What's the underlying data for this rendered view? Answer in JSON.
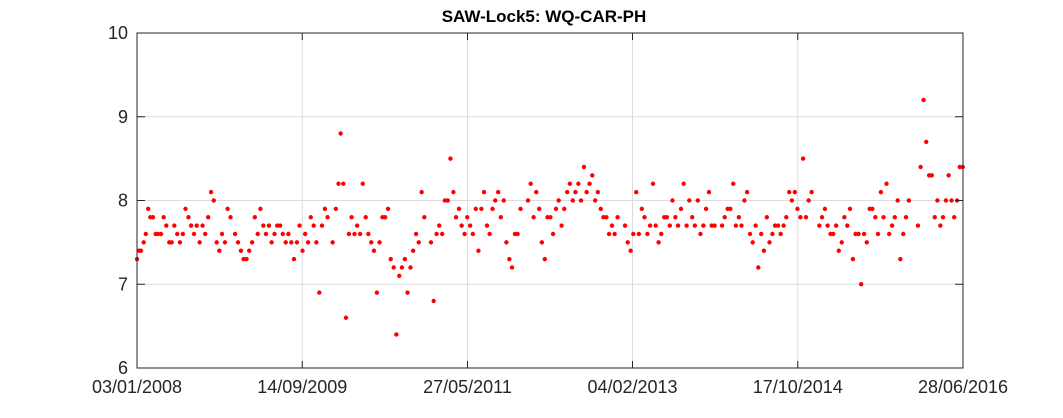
{
  "chart_data": {
    "type": "scatter",
    "title": "SAW-Lock5: WQ-CAR-PH",
    "xlabel": "",
    "ylabel": "",
    "x_type": "date",
    "xlim": [
      "2008-01-03",
      "2016-06-28"
    ],
    "ylim": [
      6,
      10
    ],
    "x_ticks": [
      "2008-01-03",
      "2009-09-14",
      "2011-05-27",
      "2013-02-04",
      "2014-10-17",
      "2016-06-28"
    ],
    "x_tick_labels": [
      "03/01/2008",
      "14/09/2009",
      "27/05/2011",
      "04/02/2013",
      "17/10/2014",
      "28/06/2016"
    ],
    "y_ticks": [
      6,
      7,
      8,
      9,
      10
    ],
    "y_tick_labels": [
      "6",
      "7",
      "8",
      "9",
      "10"
    ],
    "grid": true,
    "marker_color": "#ff0000",
    "series": [
      {
        "points": [
          [
            "2008-01-03",
            7.3
          ],
          [
            "2008-01-10",
            7.4
          ],
          [
            "2008-01-18",
            7.4
          ],
          [
            "2008-01-28",
            7.5
          ],
          [
            "2008-02-05",
            7.6
          ],
          [
            "2008-02-14",
            7.9
          ],
          [
            "2008-02-22",
            7.8
          ],
          [
            "2008-03-03",
            7.8
          ],
          [
            "2008-03-13",
            7.6
          ],
          [
            "2008-03-22",
            7.6
          ],
          [
            "2008-04-02",
            7.6
          ],
          [
            "2008-04-12",
            7.8
          ],
          [
            "2008-04-22",
            7.7
          ],
          [
            "2008-05-03",
            7.5
          ],
          [
            "2008-05-12",
            7.5
          ],
          [
            "2008-05-22",
            7.7
          ],
          [
            "2008-06-02",
            7.6
          ],
          [
            "2008-06-12",
            7.5
          ],
          [
            "2008-06-23",
            7.6
          ],
          [
            "2008-07-03",
            7.9
          ],
          [
            "2008-07-14",
            7.8
          ],
          [
            "2008-07-24",
            7.7
          ],
          [
            "2008-08-04",
            7.6
          ],
          [
            "2008-08-14",
            7.7
          ],
          [
            "2008-08-25",
            7.5
          ],
          [
            "2008-09-05",
            7.7
          ],
          [
            "2008-09-15",
            7.6
          ],
          [
            "2008-09-26",
            7.8
          ],
          [
            "2008-10-07",
            8.1
          ],
          [
            "2008-10-17",
            8.0
          ],
          [
            "2008-10-28",
            7.5
          ],
          [
            "2008-11-07",
            7.4
          ],
          [
            "2008-11-17",
            7.6
          ],
          [
            "2008-11-28",
            7.5
          ],
          [
            "2008-12-08",
            7.9
          ],
          [
            "2008-12-19",
            7.8
          ],
          [
            "2009-01-05",
            7.6
          ],
          [
            "2009-01-16",
            7.5
          ],
          [
            "2009-01-27",
            7.4
          ],
          [
            "2009-02-06",
            7.3
          ],
          [
            "2009-02-17",
            7.3
          ],
          [
            "2009-02-27",
            7.4
          ],
          [
            "2009-03-10",
            7.5
          ],
          [
            "2009-03-20",
            7.8
          ],
          [
            "2009-03-31",
            7.6
          ],
          [
            "2009-04-10",
            7.9
          ],
          [
            "2009-04-21",
            7.7
          ],
          [
            "2009-05-01",
            7.6
          ],
          [
            "2009-05-12",
            7.7
          ],
          [
            "2009-05-22",
            7.5
          ],
          [
            "2009-06-02",
            7.6
          ],
          [
            "2009-06-12",
            7.7
          ],
          [
            "2009-06-23",
            7.7
          ],
          [
            "2009-07-03",
            7.6
          ],
          [
            "2009-07-14",
            7.5
          ],
          [
            "2009-07-24",
            7.6
          ],
          [
            "2009-08-04",
            7.5
          ],
          [
            "2009-08-14",
            7.3
          ],
          [
            "2009-08-25",
            7.5
          ],
          [
            "2009-09-04",
            7.7
          ],
          [
            "2009-09-15",
            7.4
          ],
          [
            "2009-09-25",
            7.6
          ],
          [
            "2009-10-06",
            7.5
          ],
          [
            "2009-10-16",
            7.8
          ],
          [
            "2009-10-27",
            7.7
          ],
          [
            "2009-11-06",
            7.5
          ],
          [
            "2009-11-17",
            6.9
          ],
          [
            "2009-11-27",
            7.7
          ],
          [
            "2009-12-08",
            7.9
          ],
          [
            "2009-12-18",
            7.8
          ],
          [
            "2010-01-06",
            7.5
          ],
          [
            "2010-01-18",
            7.9
          ],
          [
            "2010-01-28",
            8.2
          ],
          [
            "2010-02-05",
            8.8
          ],
          [
            "2010-02-15",
            8.2
          ],
          [
            "2010-02-25",
            6.6
          ],
          [
            "2010-03-08",
            7.6
          ],
          [
            "2010-03-18",
            7.8
          ],
          [
            "2010-03-29",
            7.6
          ],
          [
            "2010-04-08",
            7.7
          ],
          [
            "2010-04-19",
            7.6
          ],
          [
            "2010-04-29",
            8.2
          ],
          [
            "2010-05-10",
            7.8
          ],
          [
            "2010-05-20",
            7.6
          ],
          [
            "2010-05-31",
            7.5
          ],
          [
            "2010-06-10",
            7.4
          ],
          [
            "2010-06-21",
            6.9
          ],
          [
            "2010-07-01",
            7.5
          ],
          [
            "2010-07-12",
            7.8
          ],
          [
            "2010-07-22",
            7.8
          ],
          [
            "2010-08-02",
            7.9
          ],
          [
            "2010-08-12",
            7.3
          ],
          [
            "2010-08-23",
            7.2
          ],
          [
            "2010-09-02",
            6.4
          ],
          [
            "2010-09-13",
            7.1
          ],
          [
            "2010-09-23",
            7.2
          ],
          [
            "2010-10-04",
            7.3
          ],
          [
            "2010-10-14",
            6.9
          ],
          [
            "2010-10-25",
            7.2
          ],
          [
            "2010-11-04",
            7.4
          ],
          [
            "2010-11-15",
            7.6
          ],
          [
            "2010-11-25",
            7.5
          ],
          [
            "2010-12-06",
            8.1
          ],
          [
            "2010-12-16",
            7.8
          ],
          [
            "2011-01-10",
            7.5
          ],
          [
            "2011-01-20",
            6.8
          ],
          [
            "2011-01-31",
            7.6
          ],
          [
            "2011-02-10",
            7.7
          ],
          [
            "2011-02-21",
            7.6
          ],
          [
            "2011-03-03",
            8.0
          ],
          [
            "2011-03-14",
            8.0
          ],
          [
            "2011-03-24",
            8.5
          ],
          [
            "2011-04-04",
            8.1
          ],
          [
            "2011-04-14",
            7.8
          ],
          [
            "2011-04-25",
            7.9
          ],
          [
            "2011-05-05",
            7.7
          ],
          [
            "2011-05-16",
            7.6
          ],
          [
            "2011-05-26",
            7.8
          ],
          [
            "2011-06-06",
            7.7
          ],
          [
            "2011-06-16",
            7.6
          ],
          [
            "2011-06-27",
            7.9
          ],
          [
            "2011-07-07",
            7.4
          ],
          [
            "2011-07-18",
            7.9
          ],
          [
            "2011-07-28",
            8.1
          ],
          [
            "2011-08-08",
            7.7
          ],
          [
            "2011-08-18",
            7.6
          ],
          [
            "2011-08-29",
            7.9
          ],
          [
            "2011-09-08",
            8.0
          ],
          [
            "2011-09-19",
            8.1
          ],
          [
            "2011-09-29",
            7.8
          ],
          [
            "2011-10-10",
            8.0
          ],
          [
            "2011-10-20",
            7.5
          ],
          [
            "2011-10-31",
            7.3
          ],
          [
            "2011-11-10",
            7.2
          ],
          [
            "2011-11-21",
            7.6
          ],
          [
            "2011-12-01",
            7.6
          ],
          [
            "2011-12-12",
            7.9
          ],
          [
            "2012-01-09",
            8.0
          ],
          [
            "2012-01-19",
            8.2
          ],
          [
            "2012-01-30",
            7.8
          ],
          [
            "2012-02-09",
            8.1
          ],
          [
            "2012-02-20",
            7.9
          ],
          [
            "2012-03-01",
            7.5
          ],
          [
            "2012-03-12",
            7.3
          ],
          [
            "2012-03-22",
            7.8
          ],
          [
            "2012-04-02",
            7.8
          ],
          [
            "2012-04-12",
            7.6
          ],
          [
            "2012-04-23",
            7.9
          ],
          [
            "2012-05-03",
            8.0
          ],
          [
            "2012-05-14",
            7.7
          ],
          [
            "2012-05-24",
            7.9
          ],
          [
            "2012-06-04",
            8.1
          ],
          [
            "2012-06-14",
            8.2
          ],
          [
            "2012-06-25",
            8.0
          ],
          [
            "2012-07-05",
            8.1
          ],
          [
            "2012-07-16",
            8.2
          ],
          [
            "2012-07-26",
            8.0
          ],
          [
            "2012-08-06",
            8.4
          ],
          [
            "2012-08-16",
            8.1
          ],
          [
            "2012-08-27",
            8.2
          ],
          [
            "2012-09-06",
            8.3
          ],
          [
            "2012-09-17",
            8.0
          ],
          [
            "2012-09-27",
            8.1
          ],
          [
            "2012-10-08",
            7.9
          ],
          [
            "2012-10-18",
            7.8
          ],
          [
            "2012-10-29",
            7.8
          ],
          [
            "2012-11-08",
            7.6
          ],
          [
            "2012-11-19",
            7.7
          ],
          [
            "2012-11-29",
            7.6
          ],
          [
            "2012-12-10",
            7.8
          ],
          [
            "2013-01-07",
            7.7
          ],
          [
            "2013-01-17",
            7.5
          ],
          [
            "2013-01-28",
            7.4
          ],
          [
            "2013-02-07",
            7.6
          ],
          [
            "2013-02-18",
            8.1
          ],
          [
            "2013-02-28",
            7.6
          ],
          [
            "2013-03-11",
            7.9
          ],
          [
            "2013-03-21",
            7.8
          ],
          [
            "2013-04-01",
            7.6
          ],
          [
            "2013-04-11",
            7.7
          ],
          [
            "2013-04-22",
            8.2
          ],
          [
            "2013-05-02",
            7.7
          ],
          [
            "2013-05-13",
            7.5
          ],
          [
            "2013-05-23",
            7.6
          ],
          [
            "2013-06-03",
            7.8
          ],
          [
            "2013-06-13",
            7.8
          ],
          [
            "2013-06-24",
            7.7
          ],
          [
            "2013-07-04",
            8.0
          ],
          [
            "2013-07-15",
            7.8
          ],
          [
            "2013-07-25",
            7.7
          ],
          [
            "2013-08-05",
            7.9
          ],
          [
            "2013-08-15",
            8.2
          ],
          [
            "2013-08-26",
            7.7
          ],
          [
            "2013-09-05",
            8.0
          ],
          [
            "2013-09-16",
            7.8
          ],
          [
            "2013-09-26",
            7.7
          ],
          [
            "2013-10-07",
            8.0
          ],
          [
            "2013-10-17",
            7.6
          ],
          [
            "2013-10-28",
            7.7
          ],
          [
            "2013-11-07",
            7.9
          ],
          [
            "2013-11-18",
            8.1
          ],
          [
            "2013-11-28",
            7.7
          ],
          [
            "2013-12-09",
            7.7
          ],
          [
            "2014-01-06",
            7.7
          ],
          [
            "2014-01-16",
            7.8
          ],
          [
            "2014-01-27",
            7.9
          ],
          [
            "2014-02-06",
            7.9
          ],
          [
            "2014-02-17",
            8.2
          ],
          [
            "2014-02-27",
            7.7
          ],
          [
            "2014-03-10",
            7.8
          ],
          [
            "2014-03-20",
            7.7
          ],
          [
            "2014-03-31",
            8.0
          ],
          [
            "2014-04-10",
            8.1
          ],
          [
            "2014-04-21",
            7.6
          ],
          [
            "2014-05-01",
            7.5
          ],
          [
            "2014-05-12",
            7.7
          ],
          [
            "2014-05-22",
            7.2
          ],
          [
            "2014-06-02",
            7.6
          ],
          [
            "2014-06-12",
            7.4
          ],
          [
            "2014-06-23",
            7.8
          ],
          [
            "2014-07-03",
            7.5
          ],
          [
            "2014-07-14",
            7.6
          ],
          [
            "2014-07-24",
            7.7
          ],
          [
            "2014-08-04",
            7.7
          ],
          [
            "2014-08-14",
            7.6
          ],
          [
            "2014-08-25",
            7.7
          ],
          [
            "2014-09-04",
            7.8
          ],
          [
            "2014-09-15",
            8.1
          ],
          [
            "2014-09-25",
            8.0
          ],
          [
            "2014-10-06",
            8.1
          ],
          [
            "2014-10-16",
            7.9
          ],
          [
            "2014-10-27",
            7.8
          ],
          [
            "2014-11-06",
            8.5
          ],
          [
            "2014-11-17",
            7.8
          ],
          [
            "2014-11-27",
            8.0
          ],
          [
            "2014-12-08",
            8.1
          ],
          [
            "2015-01-06",
            7.7
          ],
          [
            "2015-01-16",
            7.8
          ],
          [
            "2015-01-27",
            7.9
          ],
          [
            "2015-02-06",
            7.7
          ],
          [
            "2015-02-17",
            7.6
          ],
          [
            "2015-02-27",
            7.6
          ],
          [
            "2015-03-10",
            7.7
          ],
          [
            "2015-03-20",
            7.4
          ],
          [
            "2015-03-31",
            7.5
          ],
          [
            "2015-04-10",
            7.8
          ],
          [
            "2015-04-21",
            7.7
          ],
          [
            "2015-05-01",
            7.9
          ],
          [
            "2015-05-12",
            7.3
          ],
          [
            "2015-05-22",
            7.6
          ],
          [
            "2015-06-02",
            7.6
          ],
          [
            "2015-06-12",
            7.0
          ],
          [
            "2015-06-23",
            7.6
          ],
          [
            "2015-07-03",
            7.5
          ],
          [
            "2015-07-14",
            7.9
          ],
          [
            "2015-07-24",
            7.9
          ],
          [
            "2015-08-04",
            7.8
          ],
          [
            "2015-08-14",
            7.6
          ],
          [
            "2015-08-25",
            8.1
          ],
          [
            "2015-09-04",
            7.8
          ],
          [
            "2015-09-15",
            8.2
          ],
          [
            "2015-09-25",
            7.6
          ],
          [
            "2015-10-06",
            7.7
          ],
          [
            "2015-10-16",
            7.8
          ],
          [
            "2015-10-27",
            8.0
          ],
          [
            "2015-11-06",
            7.3
          ],
          [
            "2015-11-17",
            7.6
          ],
          [
            "2015-11-27",
            7.8
          ],
          [
            "2015-12-08",
            8.0
          ],
          [
            "2016-01-11",
            7.7
          ],
          [
            "2016-01-21",
            8.4
          ],
          [
            "2016-02-01",
            9.2
          ],
          [
            "2016-02-11",
            8.7
          ],
          [
            "2016-02-22",
            8.3
          ],
          [
            "2016-03-03",
            8.3
          ],
          [
            "2016-03-14",
            7.8
          ],
          [
            "2016-03-24",
            8.0
          ],
          [
            "2016-04-04",
            7.7
          ],
          [
            "2016-04-14",
            7.8
          ],
          [
            "2016-04-25",
            8.0
          ],
          [
            "2016-05-05",
            8.3
          ],
          [
            "2016-05-16",
            8.0
          ],
          [
            "2016-05-26",
            7.8
          ],
          [
            "2016-06-06",
            8.0
          ],
          [
            "2016-06-16",
            8.4
          ],
          [
            "2016-06-27",
            8.4
          ]
        ]
      }
    ]
  }
}
